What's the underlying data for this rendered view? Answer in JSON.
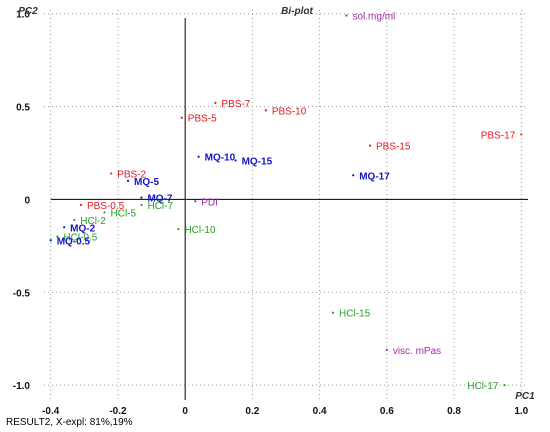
{
  "chart_data": {
    "type": "scatter",
    "title": "Bi-plot",
    "xlabel": "PC1",
    "ylabel": "PC2",
    "xlim": [
      -0.42,
      1.02
    ],
    "ylim": [
      -1.08,
      1.02
    ],
    "grid": true,
    "x_ticks": [
      -0.4,
      -0.2,
      0,
      0.2,
      0.4,
      0.6,
      0.8,
      1.0
    ],
    "x_tick_labels": [
      "-0.4",
      "-0.2",
      "0",
      "0.2",
      "0.4",
      "0.6",
      "0.8",
      "1.0"
    ],
    "y_ticks": [
      -1.0,
      -0.5,
      0,
      0.5,
      1.0
    ],
    "y_tick_labels": [
      "-1.0",
      "-0.5",
      "0",
      "0.5",
      "1.0"
    ],
    "colors": {
      "PBS": "#e8161e",
      "MQ": "#1515c8",
      "HCl": "#23a323",
      "variable": "#a42ca8",
      "axis": "#000000",
      "grid": "#9a9a9a"
    },
    "points": [
      {
        "label": "sol.mg/ml",
        "group": "variable",
        "x": 0.48,
        "y": 0.99
      },
      {
        "label": "PBS-7",
        "group": "PBS",
        "x": 0.09,
        "y": 0.52
      },
      {
        "label": "PBS-10",
        "group": "PBS",
        "x": 0.24,
        "y": 0.48
      },
      {
        "label": "PBS-5",
        "group": "PBS",
        "x": -0.01,
        "y": 0.44
      },
      {
        "label": "PBS-17",
        "group": "PBS",
        "x": 1.0,
        "y": 0.35
      },
      {
        "label": "PBS-15",
        "group": "PBS",
        "x": 0.55,
        "y": 0.29
      },
      {
        "label": "MQ-10",
        "group": "MQ",
        "x": 0.04,
        "y": 0.23
      },
      {
        "label": "MQ-15",
        "group": "MQ",
        "x": 0.15,
        "y": 0.21
      },
      {
        "label": "PBS-2",
        "group": "PBS",
        "x": -0.22,
        "y": 0.14
      },
      {
        "label": "MQ-17",
        "group": "MQ",
        "x": 0.5,
        "y": 0.13
      },
      {
        "label": "MQ-5",
        "group": "MQ",
        "x": -0.17,
        "y": 0.1
      },
      {
        "label": "MQ-7",
        "group": "MQ",
        "x": -0.13,
        "y": 0.01
      },
      {
        "label": "PDI",
        "group": "variable",
        "x": 0.03,
        "y": -0.01
      },
      {
        "label": "PBS-0.5",
        "group": "PBS",
        "x": -0.31,
        "y": -0.03
      },
      {
        "label": "HCl-7",
        "group": "HCl",
        "x": -0.13,
        "y": -0.03
      },
      {
        "label": "HCl-5",
        "group": "HCl",
        "x": -0.24,
        "y": -0.07
      },
      {
        "label": "HCl-2",
        "group": "HCl",
        "x": -0.33,
        "y": -0.11
      },
      {
        "label": "HCl-10",
        "group": "HCl",
        "x": -0.02,
        "y": -0.16
      },
      {
        "label": "MQ-2",
        "group": "MQ",
        "x": -0.36,
        "y": -0.15
      },
      {
        "label": "HCl-0.5",
        "group": "HCl",
        "x": -0.38,
        "y": -0.2
      },
      {
        "label": "MQ-0.5",
        "group": "MQ",
        "x": -0.4,
        "y": -0.22
      },
      {
        "label": "HCl-15",
        "group": "HCl",
        "x": 0.44,
        "y": -0.61
      },
      {
        "label": "visc. mPas",
        "group": "variable",
        "x": 0.6,
        "y": -0.81
      },
      {
        "label": "HCl-17",
        "group": "HCl",
        "x": 0.95,
        "y": -1.0
      }
    ]
  },
  "status_bar": {
    "text": "RESULT2, X-expl: 81%,19%"
  }
}
